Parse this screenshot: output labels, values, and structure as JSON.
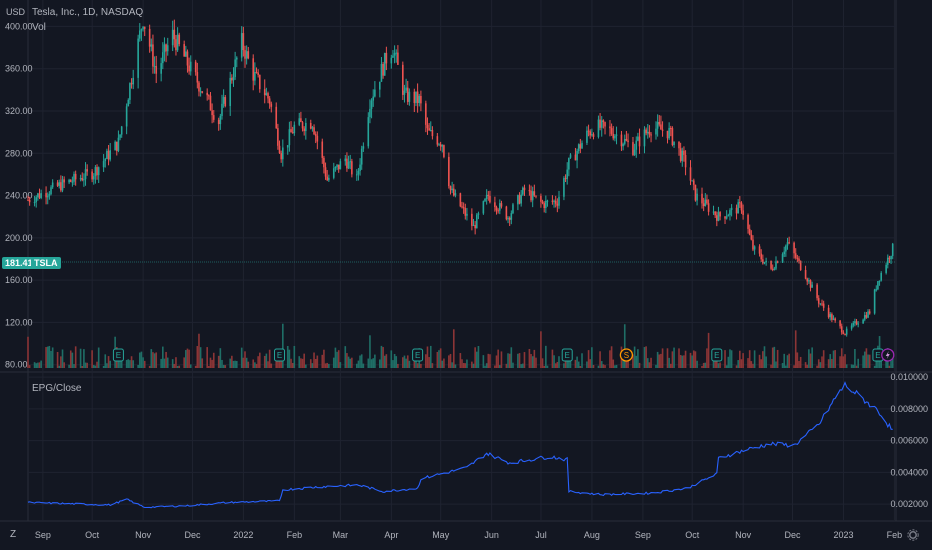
{
  "window": {
    "currency": "USD",
    "symbol_line": "Tesla, Inc., 1D, NASDAQ",
    "vol_label": "Vol",
    "indicator_title": "EPG/Close",
    "timezone_button": "Z",
    "settings_icon": "gear-icon"
  },
  "price_tag": {
    "value": "181.41",
    "ticker": "TSLA",
    "color": "#26a69a"
  },
  "colors": {
    "up": "#26a69a",
    "down": "#ef5350",
    "vol_up": "#1f6e66",
    "vol_down": "#8c3536",
    "indicator_line": "#2962ff",
    "grid": "#1f2330",
    "bg": "#131722"
  },
  "chart_data": [
    {
      "type": "candlestick",
      "title": "Tesla, Inc., 1D, NASDAQ",
      "ylabel": "USD",
      "ylim": [
        75,
        425
      ],
      "y_ticks": [
        "400.00",
        "360.00",
        "320.00",
        "280.00",
        "240.00",
        "200.00",
        "160.00",
        "120.00",
        "80.00"
      ],
      "x_ticks": [
        "Sep",
        "Oct",
        "Nov",
        "Dec",
        "2022",
        "Feb",
        "Mar",
        "Apr",
        "May",
        "Jun",
        "Jul",
        "Aug",
        "Sep",
        "Oct",
        "Nov",
        "Dec",
        "2023",
        "Feb"
      ],
      "x_range": [
        "2021-08-26",
        "2023-02-05"
      ],
      "close_path": [
        [
          "2021-08-26",
          236
        ],
        [
          "2021-09-15",
          250
        ],
        [
          "2021-10-05",
          262
        ],
        [
          "2021-10-20",
          290
        ],
        [
          "2021-10-28",
          352
        ],
        [
          "2021-11-04",
          408
        ],
        [
          "2021-11-12",
          356
        ],
        [
          "2021-11-22",
          392
        ],
        [
          "2021-12-01",
          365
        ],
        [
          "2021-12-10",
          340
        ],
        [
          "2021-12-20",
          310
        ],
        [
          "2022-01-03",
          385
        ],
        [
          "2022-01-10",
          355
        ],
        [
          "2022-01-20",
          330
        ],
        [
          "2022-01-27",
          280
        ],
        [
          "2022-02-04",
          305
        ],
        [
          "2022-02-15",
          310
        ],
        [
          "2022-02-24",
          255
        ],
        [
          "2022-03-07",
          275
        ],
        [
          "2022-03-14",
          255
        ],
        [
          "2022-03-22",
          330
        ],
        [
          "2022-04-01",
          370
        ],
        [
          "2022-04-05",
          380
        ],
        [
          "2022-04-12",
          335
        ],
        [
          "2022-04-21",
          330
        ],
        [
          "2022-04-26",
          300
        ],
        [
          "2022-05-05",
          290
        ],
        [
          "2022-05-10",
          245
        ],
        [
          "2022-05-24",
          210
        ],
        [
          "2022-06-02",
          240
        ],
        [
          "2022-06-14",
          220
        ],
        [
          "2022-06-24",
          245
        ],
        [
          "2022-07-05",
          232
        ],
        [
          "2022-07-14",
          235
        ],
        [
          "2022-07-21",
          270
        ],
        [
          "2022-08-02",
          300
        ],
        [
          "2022-08-08",
          305
        ],
        [
          "2022-08-17",
          300
        ],
        [
          "2022-08-29",
          285
        ],
        [
          "2022-09-09",
          305
        ],
        [
          "2022-09-20",
          300
        ],
        [
          "2022-09-30",
          270
        ],
        [
          "2022-10-06",
          240
        ],
        [
          "2022-10-20",
          220
        ],
        [
          "2022-10-28",
          225
        ],
        [
          "2022-11-03",
          230
        ],
        [
          "2022-11-10",
          190
        ],
        [
          "2022-11-21",
          170
        ],
        [
          "2022-12-01",
          195
        ],
        [
          "2022-12-12",
          165
        ],
        [
          "2022-12-20",
          140
        ],
        [
          "2022-12-30",
          120
        ],
        [
          "2023-01-05",
          110
        ],
        [
          "2023-01-12",
          120
        ],
        [
          "2023-01-20",
          130
        ],
        [
          "2023-01-25",
          160
        ],
        [
          "2023-01-31",
          180
        ],
        [
          "2023-02-03",
          190
        ]
      ],
      "volume_range_m": [
        50,
        400
      ],
      "markers": [
        {
          "date": "2021-10-20",
          "kind": "E"
        },
        {
          "date": "2022-01-26",
          "kind": "E"
        },
        {
          "date": "2022-04-20",
          "kind": "E"
        },
        {
          "date": "2022-07-20",
          "kind": "E"
        },
        {
          "date": "2022-08-25",
          "kind": "S"
        },
        {
          "date": "2022-10-19",
          "kind": "E"
        },
        {
          "date": "2023-01-25",
          "kind": "E"
        },
        {
          "date": "2023-01-31",
          "kind": "lightning"
        }
      ]
    },
    {
      "type": "line",
      "title": "EPG/Close",
      "ylim": [
        0.001,
        0.0102
      ],
      "y_ticks": [
        "0.010000",
        "0.008000",
        "0.006000",
        "0.004000",
        "0.002000"
      ],
      "series": [
        {
          "values": [
            [
              "2021-08-26",
              0.0021
            ],
            [
              "2021-10-15",
              0.00195
            ],
            [
              "2021-10-25",
              0.0023
            ],
            [
              "2021-11-05",
              0.0018
            ],
            [
              "2021-12-01",
              0.0019
            ],
            [
              "2021-12-25",
              0.0021
            ],
            [
              "2022-01-26",
              0.0022
            ],
            [
              "2022-01-28",
              0.0029
            ],
            [
              "2022-02-20",
              0.0031
            ],
            [
              "2022-03-15",
              0.0032
            ],
            [
              "2022-03-30",
              0.0028
            ],
            [
              "2022-04-20",
              0.003
            ],
            [
              "2022-04-22",
              0.0036
            ],
            [
              "2022-05-20",
              0.0043
            ],
            [
              "2022-06-01",
              0.0052
            ],
            [
              "2022-06-15",
              0.0046
            ],
            [
              "2022-07-10",
              0.005
            ],
            [
              "2022-07-20",
              0.0048
            ],
            [
              "2022-07-21",
              0.0028
            ],
            [
              "2022-08-10",
              0.0026
            ],
            [
              "2022-09-10",
              0.0027
            ],
            [
              "2022-10-01",
              0.003
            ],
            [
              "2022-10-19",
              0.0039
            ],
            [
              "2022-10-20",
              0.0049
            ],
            [
              "2022-11-05",
              0.0054
            ],
            [
              "2022-11-20",
              0.0058
            ],
            [
              "2022-12-05",
              0.0057
            ],
            [
              "2022-12-20",
              0.007
            ],
            [
              "2023-01-01",
              0.009
            ],
            [
              "2023-01-05",
              0.0095
            ],
            [
              "2023-01-15",
              0.0087
            ],
            [
              "2023-01-25",
              0.0079
            ],
            [
              "2023-02-03",
              0.0066
            ]
          ]
        }
      ]
    }
  ]
}
